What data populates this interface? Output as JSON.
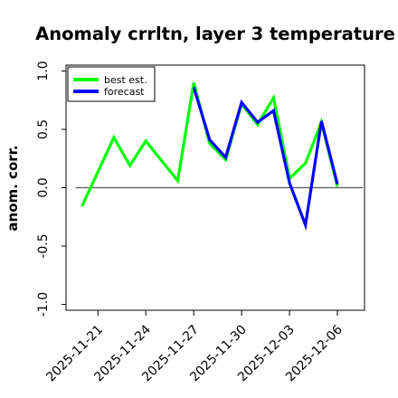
{
  "chart_data": {
    "type": "line",
    "title": "Anomaly crrltn, layer 3 temperature",
    "ylabel": "anom. corr.",
    "xlabel": "",
    "ylim": [
      -1.05,
      1.05
    ],
    "yticks": [
      "-1.0",
      "-0.5",
      "0.0",
      "0.5",
      "1.0"
    ],
    "ytick_values": [
      -1.0,
      -0.5,
      0.0,
      0.5,
      1.0
    ],
    "xtick_labels": [
      "2025-11-21",
      "2025-11-24",
      "2025-11-27",
      "2025-11-30",
      "2025-12-03",
      "2025-12-06"
    ],
    "xtick_days": [
      0,
      3,
      6,
      9,
      12,
      15
    ],
    "highlight_tick": "2025-11-27",
    "highlight_color": "#228b22",
    "xrange_days": [
      -2,
      16.7
    ],
    "zero_line": 0.0,
    "legend_position": "top-left",
    "series": [
      {
        "name": "best est.",
        "color": "#00ff00",
        "x": [
          "2025-11-20",
          "2025-11-22",
          "2025-11-23",
          "2025-11-24",
          "2025-11-26",
          "2025-11-27",
          "2025-11-28",
          "2025-11-29",
          "2025-11-30",
          "2025-12-01",
          "2025-12-02",
          "2025-12-03",
          "2025-12-04",
          "2025-12-05",
          "2025-12-06"
        ],
        "values": [
          -0.16,
          0.43,
          0.19,
          0.4,
          0.06,
          0.9,
          0.38,
          0.24,
          0.72,
          0.54,
          0.77,
          0.08,
          0.21,
          0.56,
          0.01
        ]
      },
      {
        "name": "forecast",
        "color": "#0000ff",
        "x": [
          "2025-11-27",
          "2025-11-28",
          "2025-11-29",
          "2025-11-30",
          "2025-12-01",
          "2025-12-02",
          "2025-12-03",
          "2025-12-04",
          "2025-12-05",
          "2025-12-06"
        ],
        "values": [
          0.86,
          0.41,
          0.26,
          0.73,
          0.56,
          0.66,
          0.04,
          -0.32,
          0.57,
          0.03
        ]
      }
    ]
  }
}
